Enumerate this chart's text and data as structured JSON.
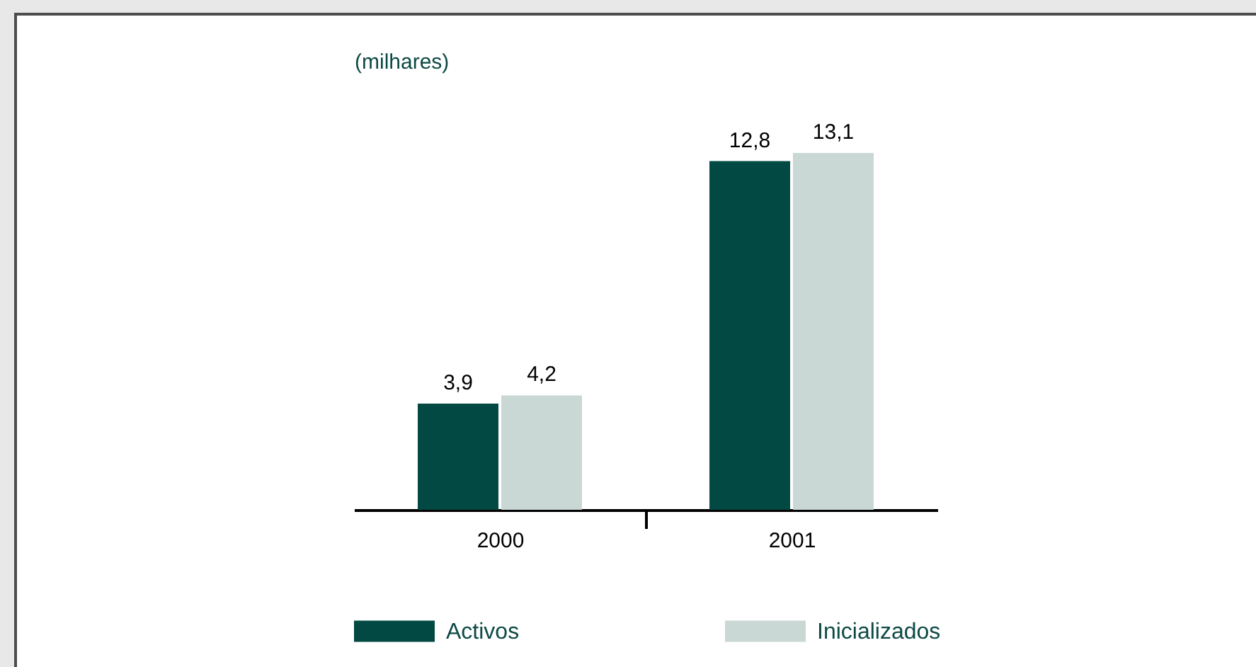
{
  "chart_data": {
    "type": "bar",
    "ylabel": "(milhares)",
    "categories": [
      "2000",
      "2001"
    ],
    "series": [
      {
        "name": "Activos",
        "color": "#034943",
        "values": [
          3.9,
          12.8
        ],
        "value_labels": [
          "3,9",
          "12,8"
        ]
      },
      {
        "name": "Inicializados",
        "color": "#c9d8d4",
        "values": [
          4.2,
          13.1
        ],
        "value_labels": [
          "4,2",
          "13,1"
        ]
      }
    ],
    "legend": "bottom"
  }
}
